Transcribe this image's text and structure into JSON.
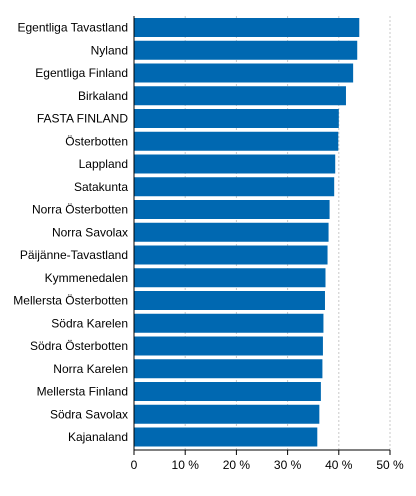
{
  "chart_data": {
    "type": "bar",
    "orientation": "horizontal",
    "categories": [
      "Egentliga Tavastland",
      "Nyland",
      "Egentliga Finland",
      "Birkaland",
      "FASTA FINLAND",
      "Österbotten",
      "Lappland",
      "Satakunta",
      "Norra Österbotten",
      "Norra Savolax",
      "Päijänne-Tavastland",
      "Kymmenedalen",
      "Mellersta Österbotten",
      "Södra Karelen",
      "Södra Österbotten",
      "Norra Karelen",
      "Mellersta Finland",
      "Södra Savolax",
      "Kajanaland"
    ],
    "values": [
      44.0,
      43.6,
      42.8,
      41.4,
      40.0,
      39.9,
      39.3,
      39.1,
      38.2,
      38.0,
      37.8,
      37.4,
      37.3,
      37.0,
      36.9,
      36.8,
      36.5,
      36.2,
      35.8
    ],
    "xlim": [
      0,
      50
    ],
    "x_ticks": [
      "0",
      "10 %",
      "20 %",
      "30 %",
      "40 %",
      "50 %"
    ],
    "x_tick_values": [
      0,
      10,
      20,
      30,
      40,
      50
    ],
    "grid": true,
    "colors": {
      "bar": "#0068b1",
      "grid": "#c9c9c9",
      "axis": "#000000"
    }
  }
}
